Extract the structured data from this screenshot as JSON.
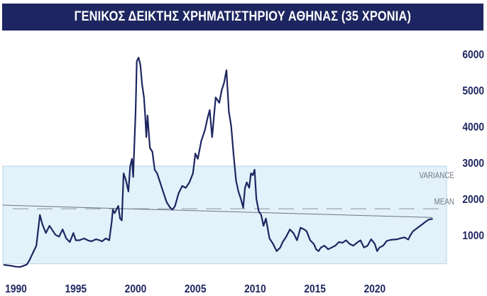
{
  "title": "ΓΕΝΙΚΟΣ ΔΕΙΚΤΗΣ ΧΡΗΜΑΤΙΣΤΗΡΙΟΥ ΑΘΗΝΑΣ (35 ΧΡΟΝΙΑ)",
  "colors": {
    "title_bg": "#1d2660",
    "title_text": "#ffffff",
    "line": "#1d2660",
    "band_fill": "#e3f1fa",
    "band_border": "#b8d6ea",
    "trend": "#6b7585",
    "mean_dash": "#8a929c",
    "label_gray": "#6f7a86"
  },
  "chart_data": {
    "type": "line",
    "title": "ΓΕΝΙΚΟΣ ΔΕΙΚΤΗΣ ΧΡΗΜΑΤΙΣΤΗΡΙΟΥ ΑΘΗΝΑΣ (35 ΧΡΟΝΙΑ)",
    "xlabel": "",
    "ylabel": "",
    "xlim": [
      1988.9,
      2026.3
    ],
    "ylim": [
      -200,
      6550
    ],
    "x_ticks": [
      1990,
      1995,
      2000,
      2005,
      2010,
      2015,
      2020
    ],
    "y_ticks": [
      1000,
      2000,
      3000,
      4000,
      5000,
      6000
    ],
    "y_axis_side": "right",
    "grid": false,
    "legend": "none",
    "annotations": {
      "variance_band": {
        "label": "VARIANCE",
        "range": [
          200,
          2900
        ]
      },
      "mean_line": {
        "label": "MEAN",
        "value": 1720
      },
      "trend_line": {
        "from": [
          1988.9,
          1820
        ],
        "to": [
          2024.8,
          1480
        ]
      }
    },
    "series": [
      {
        "x": [
          1989.0,
          1989.5,
          1990.0,
          1990.3,
          1990.6,
          1990.9,
          1991.1,
          1991.3,
          1991.7,
          1992.0,
          1992.2,
          1992.5,
          1992.8,
          1993.0,
          1993.3,
          1993.6,
          1993.9,
          1994.2,
          1994.5,
          1994.8,
          1995.0,
          1995.3,
          1995.7,
          1996.0,
          1996.3,
          1996.7,
          1997.0,
          1997.2,
          1997.5,
          1997.8,
          1998.0,
          1998.1,
          1998.25,
          1998.4,
          1998.55,
          1998.7,
          1998.85,
          1999.0,
          1999.2,
          1999.4,
          1999.55,
          1999.7,
          1999.8,
          1999.9,
          2000.0,
          2000.1,
          2000.25,
          2000.4,
          2000.55,
          2000.7,
          2000.8,
          2000.9,
          2001.0,
          2001.2,
          2001.4,
          2001.6,
          2001.8,
          2002.0,
          2002.3,
          2002.6,
          2002.9,
          2003.1,
          2003.3,
          2003.6,
          2003.9,
          2004.2,
          2004.5,
          2004.8,
          2005.0,
          2005.2,
          2005.5,
          2005.8,
          2006.0,
          2006.2,
          2006.4,
          2006.7,
          2007.0,
          2007.2,
          2007.4,
          2007.6,
          2007.8,
          2007.9,
          2008.0,
          2008.2,
          2008.4,
          2008.6,
          2008.8,
          2009.0,
          2009.15,
          2009.3,
          2009.5,
          2009.65,
          2009.8,
          2009.95,
          2010.1,
          2010.3,
          2010.5,
          2010.7,
          2010.9,
          2011.2,
          2011.5,
          2011.8,
          2012.1,
          2012.3,
          2012.6,
          2012.9,
          2013.2,
          2013.5,
          2013.8,
          2014.1,
          2014.3,
          2014.6,
          2014.9,
          2015.1,
          2015.3,
          2015.5,
          2015.8,
          2016.1,
          2016.4,
          2016.7,
          2017.0,
          2017.3,
          2017.6,
          2017.9,
          2018.2,
          2018.5,
          2018.8,
          2019.1,
          2019.4,
          2019.7,
          2020.0,
          2020.2,
          2020.4,
          2020.7,
          2021.0,
          2021.3,
          2021.6,
          2021.9,
          2022.2,
          2022.5,
          2022.8,
          2023.0,
          2023.2,
          2023.4,
          2023.6,
          2023.8,
          2024.0,
          2024.2,
          2024.5,
          2024.8
        ],
        "values": [
          170,
          150,
          120,
          110,
          140,
          180,
          280,
          420,
          700,
          1550,
          1300,
          1050,
          1250,
          1150,
          1000,
          950,
          1150,
          900,
          800,
          1050,
          850,
          850,
          900,
          850,
          820,
          880,
          850,
          820,
          900,
          850,
          1350,
          1700,
          1600,
          1700,
          1800,
          1450,
          1400,
          2700,
          2500,
          2200,
          2900,
          3100,
          2600,
          3500,
          4400,
          5800,
          5900,
          5700,
          5150,
          4800,
          4300,
          3700,
          4300,
          3400,
          3300,
          2800,
          2700,
          2500,
          2200,
          1900,
          1750,
          1700,
          1800,
          2150,
          2350,
          2300,
          2450,
          2700,
          3250,
          3100,
          3600,
          3900,
          4200,
          4450,
          3700,
          4800,
          4650,
          5000,
          5200,
          5550,
          4400,
          4200,
          4000,
          3200,
          2500,
          2200,
          2000,
          1750,
          2300,
          2450,
          2300,
          2700,
          2650,
          2800,
          2000,
          1650,
          1550,
          1250,
          1450,
          900,
          750,
          550,
          650,
          800,
          950,
          1150,
          1050,
          850,
          1200,
          1150,
          1100,
          850,
          750,
          600,
          550,
          650,
          700,
          600,
          650,
          700,
          800,
          780,
          850,
          750,
          700,
          780,
          850,
          650,
          700,
          880,
          750,
          550,
          650,
          700,
          830,
          860,
          870,
          880,
          910,
          930,
          870,
          1000,
          1100,
          1150,
          1200,
          1250,
          1300,
          1350,
          1420,
          1440
        ]
      }
    ]
  }
}
